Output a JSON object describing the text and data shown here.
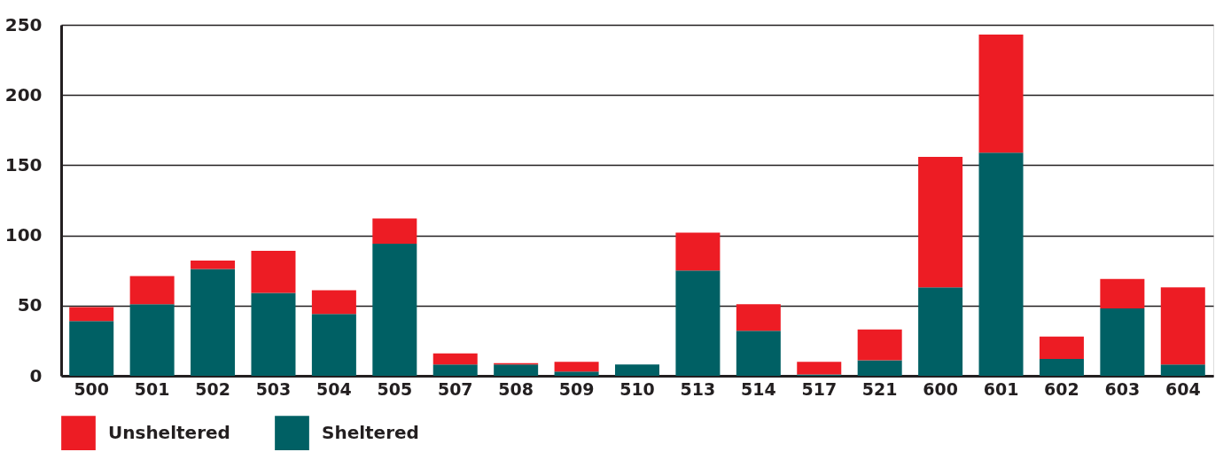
{
  "chart_data": {
    "type": "bar",
    "stacked": true,
    "categories": [
      "500",
      "501",
      "502",
      "503",
      "504",
      "505",
      "507",
      "508",
      "509",
      "510",
      "513",
      "514",
      "517",
      "521",
      "600",
      "601",
      "602",
      "603",
      "604"
    ],
    "series": [
      {
        "name": "Sheltered",
        "color": "#006064",
        "values": [
          39,
          51,
          76,
          59,
          44,
          94,
          8,
          8,
          3,
          8,
          75,
          32,
          1,
          11,
          63,
          159,
          12,
          48,
          8
        ]
      },
      {
        "name": "Unsheltered",
        "color": "#ed1c24",
        "values": [
          10,
          20,
          6,
          30,
          17,
          18,
          8,
          1,
          7,
          0,
          27,
          19,
          9,
          22,
          93,
          84,
          16,
          21,
          55
        ]
      }
    ],
    "ylim": [
      0,
      250
    ],
    "yticks": [
      0,
      50,
      100,
      150,
      200,
      250
    ],
    "grid": "y",
    "legend": "bottom"
  }
}
